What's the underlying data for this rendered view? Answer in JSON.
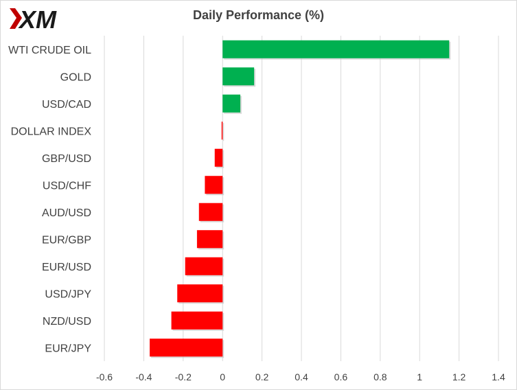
{
  "brand": {
    "logo_text": "XM"
  },
  "colors": {
    "positive": "#00b050",
    "negative": "#ff0000",
    "grid": "#d9d9d9",
    "text": "#404040"
  },
  "chart_data": {
    "type": "bar",
    "orientation": "horizontal",
    "title": "Daily Performance  (%)",
    "categories": [
      "WTI CRUDE OIL",
      "GOLD",
      "USD/CAD",
      "DOLLAR INDEX",
      "GBP/USD",
      "USD/CHF",
      "AUD/USD",
      "EUR/GBP",
      "EUR/USD",
      "USD/JPY",
      "NZD/USD",
      "EUR/JPY"
    ],
    "values": [
      1.15,
      0.16,
      0.09,
      -0.005,
      -0.04,
      -0.09,
      -0.12,
      -0.13,
      -0.19,
      -0.23,
      -0.26,
      -0.37
    ],
    "xlim": [
      -0.6,
      1.4
    ],
    "xticks": [
      -0.6,
      -0.4,
      -0.2,
      0,
      0.2,
      0.4,
      0.6,
      0.8,
      1,
      1.2,
      1.4
    ],
    "grid": "vertical",
    "legend": "none"
  }
}
